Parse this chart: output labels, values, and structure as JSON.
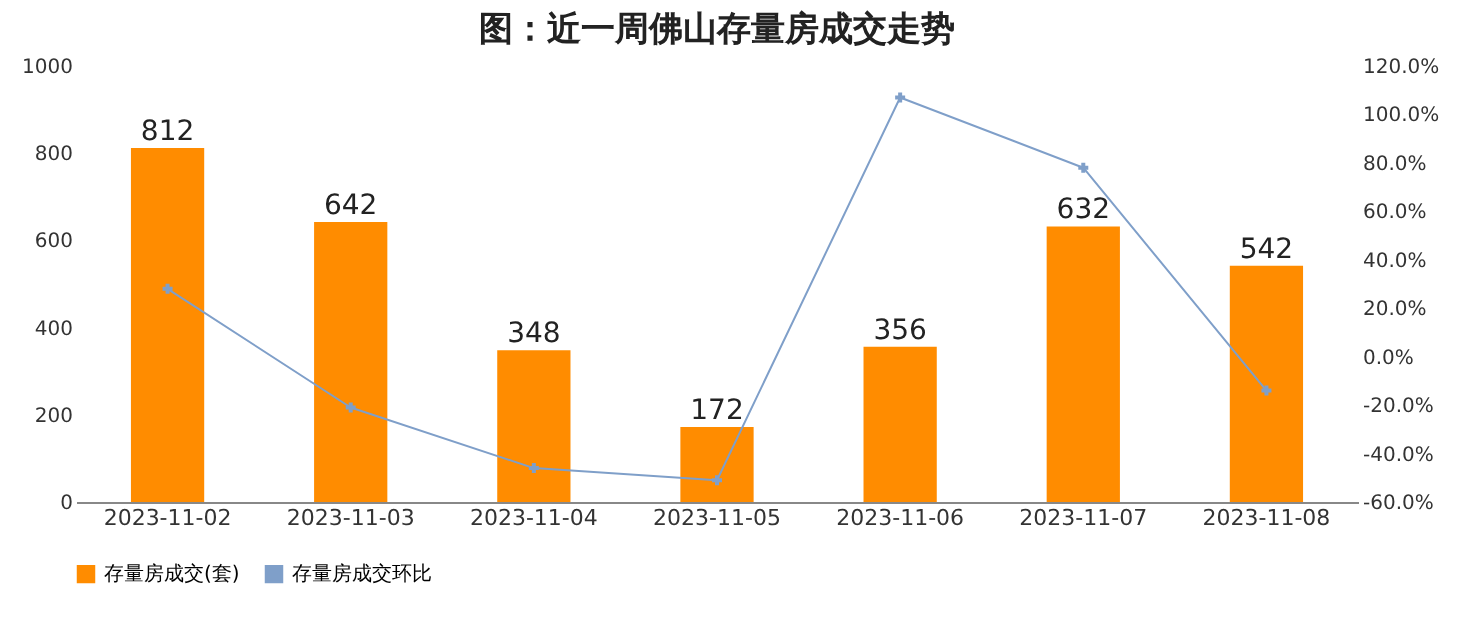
{
  "chart_data": {
    "type": "bar",
    "title": "图：近一周佛山存量房成交走势",
    "categories": [
      "2023-11-02",
      "2023-11-03",
      "2023-11-04",
      "2023-11-05",
      "2023-11-06",
      "2023-11-07",
      "2023-11-08"
    ],
    "series": [
      {
        "name": "存量房成交(套)",
        "color": "#ff8c00",
        "values": [
          812,
          642,
          348,
          172,
          356,
          632,
          542
        ],
        "value_labels": [
          "812",
          "642",
          "348",
          "172",
          "356",
          "632",
          "542"
        ]
      },
      {
        "name": "存量房成交环比",
        "type": "line",
        "axis": "y2",
        "color": "#7f9fc9",
        "values": [
          28,
          -21,
          -46,
          -51,
          107,
          78,
          -14
        ]
      }
    ],
    "ylim": [
      0,
      1000
    ],
    "yticks": [
      0,
      200,
      400,
      600,
      800,
      1000
    ],
    "y2lim": [
      -60,
      120
    ],
    "y2ticks": [
      {
        "value": -60,
        "label": "-60.0%"
      },
      {
        "value": -40,
        "label": "-40.0%"
      },
      {
        "value": -20,
        "label": "-20.0%"
      },
      {
        "value": 0,
        "label": "0.0%"
      },
      {
        "value": 20,
        "label": "20.0%"
      },
      {
        "value": 40,
        "label": "40.0%"
      },
      {
        "value": 60,
        "label": "60.0%"
      },
      {
        "value": 80,
        "label": "80.0%"
      },
      {
        "value": 100,
        "label": "100.0%"
      },
      {
        "value": 120,
        "label": "120.0%"
      }
    ],
    "legend": "bottom",
    "marker": "cross",
    "grid": false
  }
}
